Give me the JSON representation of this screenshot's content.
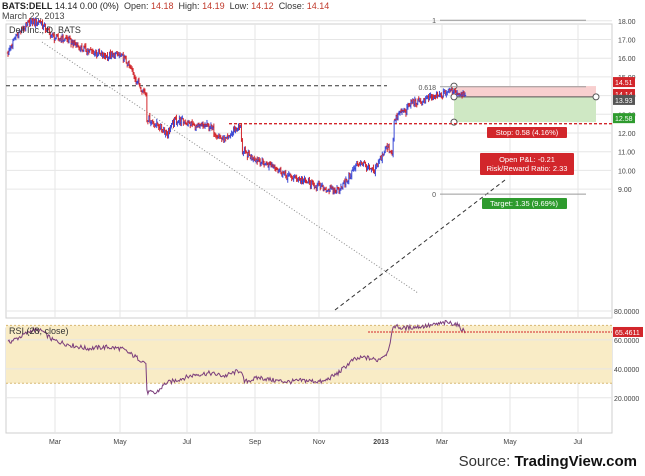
{
  "header": {
    "symbol": "BATS:DELL",
    "last": "14.14",
    "change": "0.00 (0%)",
    "open_label": "Open:",
    "open": "14.18",
    "high_label": "High:",
    "high": "14.19",
    "low_label": "Low:",
    "low": "14.12",
    "close_label": "Close:",
    "close": "14.14",
    "date": "March 22, 2013"
  },
  "source_label": "Source:",
  "source_brand": "TradingView.com",
  "colors": {
    "up": "#3a49d6",
    "down": "#d2262b",
    "grid": "#e6e6e6",
    "rsi_band": "#f9ecc6",
    "rsi_line": "#7b3d7b",
    "stop_fill": "#f8cfcf",
    "target_fill": "#cfe8c4"
  },
  "chart_data": [
    {
      "type": "candlestick",
      "title": "Dell Inc., D, BATS",
      "x_tick_labels": [
        "Mar",
        "May",
        "Jul",
        "Sep",
        "Nov",
        "2013",
        "Mar",
        "May",
        "Jul"
      ],
      "y_tick_labels": [
        "9.00",
        "10.00",
        "11.00",
        "12.00",
        "13.00",
        "14.00",
        "15.00",
        "16.00",
        "17.00",
        "18.00"
      ],
      "ylim": [
        8.3,
        18.3
      ],
      "grid": true,
      "price_keyframes": [
        {
          "t": 0,
          "p": 16.3
        },
        {
          "t": 8,
          "p": 17.2
        },
        {
          "t": 22,
          "p": 17.9
        },
        {
          "t": 32,
          "p": 18.0
        },
        {
          "t": 46,
          "p": 17.1
        },
        {
          "t": 60,
          "p": 17.0
        },
        {
          "t": 75,
          "p": 16.5
        },
        {
          "t": 88,
          "p": 16.3
        },
        {
          "t": 100,
          "p": 16.1
        },
        {
          "t": 110,
          "p": 16.2
        },
        {
          "t": 118,
          "p": 16.0
        },
        {
          "t": 126,
          "p": 15.3
        },
        {
          "t": 134,
          "p": 14.5
        },
        {
          "t": 140,
          "p": 14.1
        },
        {
          "t": 141,
          "p": 12.8
        },
        {
          "t": 152,
          "p": 12.4
        },
        {
          "t": 162,
          "p": 12.0
        },
        {
          "t": 170,
          "p": 12.7
        },
        {
          "t": 180,
          "p": 12.6
        },
        {
          "t": 192,
          "p": 12.3
        },
        {
          "t": 204,
          "p": 12.4
        },
        {
          "t": 214,
          "p": 11.8
        },
        {
          "t": 222,
          "p": 11.6
        },
        {
          "t": 230,
          "p": 12.2
        },
        {
          "t": 236,
          "p": 12.3
        },
        {
          "t": 238,
          "p": 11.0
        },
        {
          "t": 248,
          "p": 10.7
        },
        {
          "t": 260,
          "p": 10.4
        },
        {
          "t": 272,
          "p": 10.2
        },
        {
          "t": 282,
          "p": 9.7
        },
        {
          "t": 292,
          "p": 9.6
        },
        {
          "t": 302,
          "p": 9.4
        },
        {
          "t": 312,
          "p": 9.2
        },
        {
          "t": 322,
          "p": 9.0
        },
        {
          "t": 332,
          "p": 8.9
        },
        {
          "t": 342,
          "p": 9.3
        },
        {
          "t": 350,
          "p": 10.0
        },
        {
          "t": 358,
          "p": 10.5
        },
        {
          "t": 366,
          "p": 10.1
        },
        {
          "t": 372,
          "p": 9.9
        },
        {
          "t": 378,
          "p": 10.6
        },
        {
          "t": 384,
          "p": 11.2
        },
        {
          "t": 390,
          "p": 11.0
        },
        {
          "t": 392,
          "p": 12.6
        },
        {
          "t": 398,
          "p": 13.1
        },
        {
          "t": 404,
          "p": 13.2
        },
        {
          "t": 410,
          "p": 13.7
        },
        {
          "t": 418,
          "p": 13.6
        },
        {
          "t": 424,
          "p": 13.8
        },
        {
          "t": 432,
          "p": 13.9
        },
        {
          "t": 440,
          "p": 14.0
        },
        {
          "t": 446,
          "p": 14.2
        },
        {
          "t": 452,
          "p": 14.3
        },
        {
          "t": 458,
          "p": 14.1
        },
        {
          "t": 464,
          "p": 14.14
        }
      ],
      "levels": {
        "resistance": 14.53,
        "support": 12.5
      },
      "fib_labels": [
        "1",
        "0.618",
        "0"
      ],
      "fib_levels": [
        18.03,
        14.47,
        8.73
      ],
      "last_price": {
        "label": "14.14",
        "value": 14.14
      },
      "price_tags": [
        {
          "label": "14.51",
          "value": 14.51,
          "color": "#d2262b"
        },
        {
          "label": "14.14",
          "value": 14.14,
          "color": "#d2262b"
        },
        {
          "label": "13.93",
          "value": 13.93,
          "color": "#555555"
        },
        {
          "label": "12.58",
          "value": 12.58,
          "color": "#2e9b2e"
        }
      ],
      "position": {
        "entry": 13.93,
        "stop": 14.51,
        "target": 12.58,
        "stop_label": "Stop: 0.58 (4.16%)",
        "pnl_label": "Open P&L: -0.21",
        "rr_label": "Risk/Reward Ratio: 2.33",
        "target_label": "Target: 1.35 (9.69%)"
      }
    },
    {
      "type": "line",
      "title": "RSI (28, close)",
      "y_tick_labels": [
        "20.0000",
        "40.0000",
        "60.0000",
        "80.0000"
      ],
      "ylim": [
        14,
        87
      ],
      "band": [
        30,
        70
      ],
      "last_value": {
        "label": "65.4611",
        "value": 65.4611
      },
      "rsi_keyframes": [
        {
          "t": 0,
          "v": 58
        },
        {
          "t": 12,
          "v": 62
        },
        {
          "t": 25,
          "v": 67
        },
        {
          "t": 35,
          "v": 66
        },
        {
          "t": 45,
          "v": 60
        },
        {
          "t": 60,
          "v": 57
        },
        {
          "t": 80,
          "v": 54
        },
        {
          "t": 100,
          "v": 55
        },
        {
          "t": 115,
          "v": 54
        },
        {
          "t": 130,
          "v": 48
        },
        {
          "t": 140,
          "v": 44
        },
        {
          "t": 141,
          "v": 24
        },
        {
          "t": 150,
          "v": 23
        },
        {
          "t": 160,
          "v": 30
        },
        {
          "t": 175,
          "v": 33
        },
        {
          "t": 190,
          "v": 36
        },
        {
          "t": 205,
          "v": 37
        },
        {
          "t": 220,
          "v": 35
        },
        {
          "t": 236,
          "v": 39
        },
        {
          "t": 240,
          "v": 31
        },
        {
          "t": 255,
          "v": 34
        },
        {
          "t": 270,
          "v": 32
        },
        {
          "t": 285,
          "v": 31
        },
        {
          "t": 300,
          "v": 32
        },
        {
          "t": 320,
          "v": 31
        },
        {
          "t": 335,
          "v": 37
        },
        {
          "t": 350,
          "v": 46
        },
        {
          "t": 362,
          "v": 48
        },
        {
          "t": 375,
          "v": 46
        },
        {
          "t": 385,
          "v": 51
        },
        {
          "t": 392,
          "v": 70
        },
        {
          "t": 400,
          "v": 68
        },
        {
          "t": 415,
          "v": 69
        },
        {
          "t": 430,
          "v": 70
        },
        {
          "t": 445,
          "v": 72
        },
        {
          "t": 455,
          "v": 71
        },
        {
          "t": 464,
          "v": 65.46
        }
      ]
    }
  ]
}
